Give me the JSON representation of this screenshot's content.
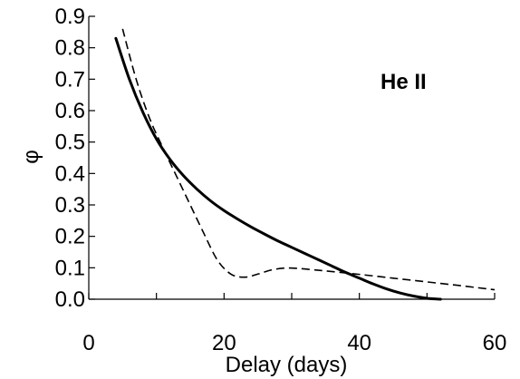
{
  "chart_data": {
    "type": "line",
    "title": "",
    "xlabel": "Delay (days)",
    "ylabel": "φ",
    "xlim": [
      0,
      60
    ],
    "ylim": [
      0.0,
      0.9
    ],
    "x_ticks": [
      0,
      20,
      40,
      60
    ],
    "x_tick_labels": [
      "0",
      "20",
      "40",
      "60"
    ],
    "x_minor_ticks": [
      10,
      30,
      50
    ],
    "y_ticks": [
      0.0,
      0.1,
      0.2,
      0.3,
      0.4,
      0.5,
      0.6,
      0.7,
      0.8,
      0.9
    ],
    "y_tick_labels": [
      "0.0",
      "0.1",
      "0.2",
      "0.3",
      "0.4",
      "0.5",
      "0.6",
      "0.7",
      "0.8",
      "0.9"
    ],
    "grid": false,
    "legend": "none",
    "annotations": [
      {
        "text": "He II"
      }
    ],
    "series": [
      {
        "style": "solid",
        "color": "#000000",
        "x": [
          4,
          6,
          8,
          10,
          12,
          14,
          16,
          18,
          20,
          22,
          24,
          26,
          28,
          30,
          32,
          34,
          36,
          38,
          40,
          42,
          44,
          46,
          48,
          50,
          52
        ],
        "y": [
          0.83,
          0.7,
          0.595,
          0.51,
          0.445,
          0.393,
          0.35,
          0.313,
          0.282,
          0.255,
          0.23,
          0.207,
          0.185,
          0.165,
          0.145,
          0.125,
          0.105,
          0.085,
          0.067,
          0.049,
          0.033,
          0.02,
          0.01,
          0.003,
          0.0
        ]
      },
      {
        "style": "dashed",
        "color": "#000000",
        "x": [
          5,
          7,
          9,
          11,
          13,
          15,
          17,
          19,
          21,
          23,
          25,
          27,
          29,
          31,
          33,
          35,
          40,
          45,
          50,
          55,
          60
        ],
        "y": [
          0.86,
          0.7,
          0.575,
          0.48,
          0.39,
          0.3,
          0.21,
          0.125,
          0.08,
          0.07,
          0.08,
          0.093,
          0.099,
          0.098,
          0.094,
          0.09,
          0.079,
          0.067,
          0.055,
          0.043,
          0.03
        ]
      }
    ]
  }
}
